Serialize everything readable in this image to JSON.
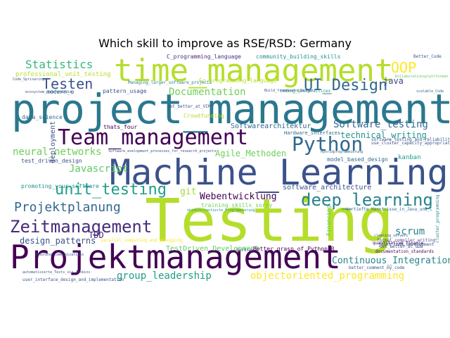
{
  "chart_data": {
    "type": "wordcloud",
    "title": "Which skill to improve as RSE/RSD: Germany",
    "palette": [
      "#440154",
      "#482878",
      "#3e4989",
      "#31688e",
      "#26828e",
      "#1f9e89",
      "#35b779",
      "#6ece58",
      "#b5de2b",
      "#fde725"
    ],
    "words": [
      {
        "text": "Testing",
        "color": "#b5de2b"
      },
      {
        "text": "project_management",
        "color": "#2a788e"
      },
      {
        "text": "Machine_Learning",
        "color": "#3b528b"
      },
      {
        "text": "Projektmanagement",
        "color": "#440154"
      },
      {
        "text": "time_management",
        "color": "#b5de2b"
      },
      {
        "text": "Team_management",
        "color": "#440154"
      },
      {
        "text": "Zeitmanagement",
        "color": "#472d7b"
      },
      {
        "text": "Python",
        "color": "#31688e"
      },
      {
        "text": "deep_learning",
        "color": "#26828e"
      },
      {
        "text": "unit_testing",
        "color": "#1f9e89"
      },
      {
        "text": "Projektplanung",
        "color": "#31688e"
      },
      {
        "text": "UI_Design",
        "color": "#31688e"
      },
      {
        "text": "Testen",
        "color": "#3b528b"
      },
      {
        "text": "OOP",
        "color": "#fde725"
      },
      {
        "text": "Statistics",
        "color": "#35b779"
      },
      {
        "text": "Documentation",
        "color": "#6ece58"
      },
      {
        "text": "Software_testing",
        "color": "#31688e"
      },
      {
        "text": "neural_networks",
        "color": "#6ece58"
      },
      {
        "text": "Javascript",
        "color": "#5ec962"
      },
      {
        "text": "objectoriented_programming",
        "color": "#fde725"
      },
      {
        "text": "group_leadership",
        "color": "#1f9e89"
      },
      {
        "text": "Continuous_Integration",
        "color": "#26828e"
      },
      {
        "text": "scrum",
        "color": "#26828e"
      },
      {
        "text": "Webentwicklung",
        "color": "#440154"
      },
      {
        "text": "design_patterns",
        "color": "#3b528b"
      },
      {
        "text": "technical_writing",
        "color": "#21918c"
      },
      {
        "text": "Agile_Methoden",
        "color": "#6ece58"
      },
      {
        "text": "TestDriven_Development",
        "color": "#5ec962"
      },
      {
        "text": "Softwarearchitektur",
        "color": "#31688e"
      },
      {
        "text": "software_architecture",
        "color": "#3b528b"
      },
      {
        "text": "java",
        "color": "#3e4989"
      },
      {
        "text": "git",
        "color": "#a0da39"
      },
      {
        "text": "TDD",
        "color": "#482878"
      },
      {
        "text": "deployment",
        "color": "#3b528b"
      },
      {
        "text": "kanban",
        "color": "#1f9e89"
      },
      {
        "text": "professional_unit_testing",
        "color": "#b5de2b"
      },
      {
        "text": "C_programming_language",
        "color": "#472d7b"
      },
      {
        "text": "community_building_skills",
        "color": "#21918c"
      },
      {
        "text": "Go_programming_language",
        "color": "#b5de2b"
      },
      {
        "text": "pattern_usage",
        "color": "#3b528b"
      },
      {
        "text": "thats_four",
        "color": "#440154"
      },
      {
        "text": "model_based_design",
        "color": "#31688e"
      },
      {
        "text": "test_driven_design",
        "color": "#3b528b"
      },
      {
        "text": "promoting_your_software",
        "color": "#21918c"
      },
      {
        "text": "data_science",
        "color": "#31688e"
      },
      {
        "text": "Crowdfunding",
        "color": "#b5de2b"
      },
      {
        "text": "Hardware_interfaces",
        "color": "#31688e"
      },
      {
        "text": "Financing",
        "color": "#5ec962"
      },
      {
        "text": "formal_compiler_writing",
        "color": "#3b528b"
      },
      {
        "text": "joint_code_development",
        "color": "#3b528b"
      },
      {
        "text": "cluster_programming",
        "color": "#26828e"
      },
      {
        "text": "Better_grasp_of_Python_R",
        "color": "#440154"
      },
      {
        "text": "Get_better_at_GDB",
        "color": "#3b528b"
      },
      {
        "text": "documentation_standards",
        "color": "#440154"
      },
      {
        "text": "better_comment_my_code",
        "color": "#3b528b"
      },
      {
        "text": "quantitative_finance",
        "color": "#440154"
      },
      {
        "text": "user_interface_design_and_implementation",
        "color": "#3b528b"
      },
      {
        "text": "training_skills_sorry",
        "color": "#6ece58"
      },
      {
        "text": "objektorientierte_Programmierung",
        "color": "#21918c"
      },
      {
        "text": "Fortran",
        "color": "#3b528b"
      },
      {
        "text": "modern_c",
        "color": "#31688e"
      },
      {
        "text": "Managing_larger_software_projects",
        "color": "#26828e"
      },
      {
        "text": "coding_bestpractices",
        "color": "#21918c"
      },
      {
        "text": "get_better_at_VIM",
        "color": "#3b528b"
      },
      {
        "text": "Vertiefte_Kenntnisse_in_Java_und_C",
        "color": "#31688e"
      },
      {
        "text": "Better_Code",
        "color": "#3b528b"
      },
      {
        "text": "parallel_computing_and_debugging",
        "color": "#fde725"
      },
      {
        "text": "software_testing_and_reliability",
        "color": "#3b528b"
      },
      {
        "text": "use_cluster_capacity_appropriately",
        "color": "#3b528b"
      },
      {
        "text": "Software_evelopment_processes_for_research_projects",
        "color": "#3b528b"
      },
      {
        "text": "automatisierte_Tests_via_Jenkins",
        "color": "#3b528b"
      },
      {
        "text": "Kollaborationsplattformen",
        "color": "#5ec962"
      },
      {
        "text": "Hybridprogrammierung",
        "color": "#31688e"
      },
      {
        "text": "Build_frameworks_DevOps",
        "color": "#3b528b"
      },
      {
        "text": "scalable_Code",
        "color": "#31688e"
      },
      {
        "text": "clearing_servers",
        "color": "#3b528b"
      },
      {
        "text": "Code_Sprisaring",
        "color": "#3b528b"
      },
      {
        "text": "teaching_communications",
        "color": "#3b528b"
      },
      {
        "text": "ecosystem_understanding",
        "color": "#3b528b"
      }
    ]
  }
}
